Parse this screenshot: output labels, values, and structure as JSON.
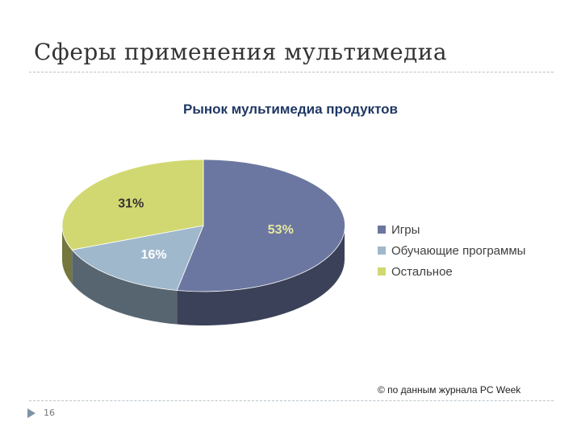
{
  "slide": {
    "title": "Сферы применения мультимедиа",
    "number": "16",
    "source_note": "© по данным журнала PC Week"
  },
  "colors": {
    "games": "#6b77a0",
    "education": "#9fb8cc",
    "other": "#d2d871"
  },
  "chart_data": {
    "type": "pie",
    "title": "Рынок мультимедиа продуктов",
    "style": "3d",
    "legend_position": "right",
    "slices": [
      {
        "label": "Игры",
        "value": 53,
        "display": "53%",
        "color": "#6b77a0"
      },
      {
        "label": "Обучающие программы",
        "value": 16,
        "display": "16%",
        "color": "#9fb8cc"
      },
      {
        "label": "Остальное",
        "value": 31,
        "display": "31%",
        "color": "#d2d871"
      }
    ]
  }
}
